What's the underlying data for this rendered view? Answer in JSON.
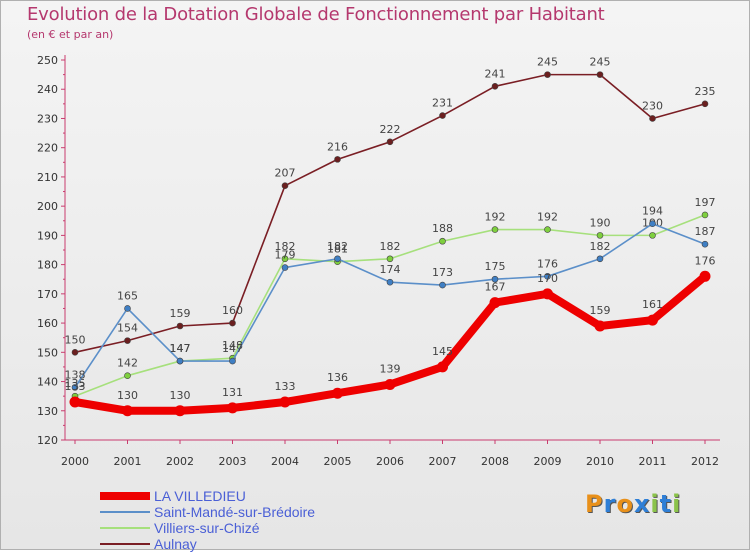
{
  "chart_data": {
    "type": "line",
    "title": "Evolution de la Dotation Globale de Fonctionnement par Habitant",
    "subtitle": "(en € et par an)",
    "xlabel": "",
    "ylabel": "",
    "categories": [
      "2000",
      "2001",
      "2002",
      "2003",
      "2004",
      "2005",
      "2006",
      "2007",
      "2008",
      "2009",
      "2010",
      "2011",
      "2012"
    ],
    "ylim": [
      120,
      250
    ],
    "yticks": [
      120,
      130,
      140,
      150,
      160,
      170,
      180,
      190,
      200,
      210,
      220,
      230,
      240,
      250
    ],
    "grid": false,
    "legend_position": "bottom-left",
    "series": [
      {
        "name": "Aulnay",
        "color": "#7a1e24",
        "marker_color": "#6b1f1f",
        "values": [
          150,
          154,
          159,
          160,
          207,
          216,
          222,
          231,
          241,
          245,
          245,
          230,
          235
        ],
        "labels": [
          "150",
          "154",
          "159",
          "160",
          "207",
          "216",
          "222",
          "231",
          "241",
          "245",
          "245",
          "230",
          "235"
        ]
      },
      {
        "name": "Villiers-sur-Chizé",
        "color": "#a6e07c",
        "marker_color": "#7ecf3e",
        "values": [
          135,
          142,
          147,
          148,
          182,
          181,
          182,
          188,
          192,
          192,
          190,
          190,
          197
        ],
        "labels": [
          "135",
          "142",
          "147",
          "148",
          "182",
          "181",
          "182",
          "188",
          "192",
          "192",
          "190",
          "190",
          "197"
        ]
      },
      {
        "name": "Saint-Mandé-sur-Brédoire",
        "color": "#5b8fc9",
        "marker_color": "#3f7fc4",
        "values": [
          138,
          165,
          147,
          147,
          179,
          182,
          174,
          173,
          175,
          176,
          182,
          194,
          187
        ],
        "labels": [
          "138",
          "165",
          "147",
          "147",
          "179",
          "182",
          "174",
          "173",
          "175",
          "176",
          "182",
          "194",
          "187"
        ]
      },
      {
        "name": "LA VILLEDIEU",
        "color": "#ee0000",
        "marker_color": "#ee0000",
        "values": [
          133,
          130,
          130,
          131,
          133,
          136,
          139,
          145,
          167,
          170,
          159,
          161,
          176
        ],
        "labels": [
          "133",
          "130",
          "130",
          "131",
          "133",
          "136",
          "139",
          "145",
          "167",
          "170",
          "159",
          "161",
          "176"
        ]
      }
    ]
  },
  "legend": {
    "items": [
      {
        "label": "LA VILLEDIEU",
        "color": "#ee0000",
        "thickness": 8
      },
      {
        "label": "Saint-Mandé-sur-Brédoire",
        "color": "#5b8fc9",
        "thickness": 2
      },
      {
        "label": "Villiers-sur-Chizé",
        "color": "#a6e07c",
        "thickness": 2
      },
      {
        "label": "Aulnay",
        "color": "#7a1e24",
        "thickness": 2
      }
    ]
  },
  "logo": {
    "text": "Proxiti",
    "letters": [
      {
        "ch": "P",
        "color": "#e8901a"
      },
      {
        "ch": "r",
        "color": "#2f7fd6"
      },
      {
        "ch": "o",
        "color": "#e8901a"
      },
      {
        "ch": "x",
        "color": "#2f7fd6"
      },
      {
        "ch": "i",
        "color": "#8bc34a"
      },
      {
        "ch": "t",
        "color": "#2f7fd6"
      },
      {
        "ch": "i",
        "color": "#8bc34a"
      }
    ]
  }
}
